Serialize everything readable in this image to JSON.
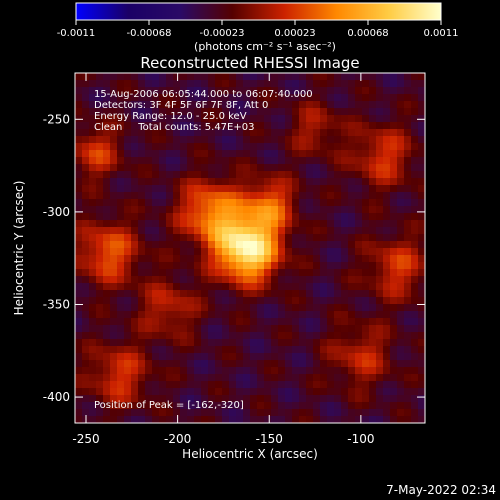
{
  "chart_data": {
    "type": "heatmap",
    "title": "Reconstructed RHESSI Image",
    "xlabel": "Heliocentric X (arcsec)",
    "ylabel": "Heliocentric Y (arcsec)",
    "xlim": [
      -256,
      -65
    ],
    "ylim": [
      -414,
      -225
    ],
    "x_ticks": [
      -250,
      -200,
      -150,
      -100
    ],
    "y_ticks": [
      -250,
      -300,
      -350,
      -400
    ],
    "colorbar": {
      "range": [
        -0.0011,
        0.0011
      ],
      "ticks": [
        "-0.0011",
        "-0.00068",
        "-0.00023",
        "0.00023",
        "0.00068",
        "0.0011"
      ],
      "unit_label": "(photons cm⁻² s⁻¹ asec⁻²)",
      "colormap": [
        "#0000ff",
        "#1a0066",
        "#2a0a66",
        "#550000",
        "#cc2200",
        "#ff8800",
        "#ffcc44",
        "#ffffcc"
      ]
    },
    "info_lines": [
      "15-Aug-2006 06:05:44.000 to 06:07:40.000",
      "Detectors: 3F 4F 5F 6F 7F 8F, Att 0",
      "Energy Range: 12.0 - 25.0 keV",
      "Clean     Total counts: 5.47E+03"
    ],
    "peak_label": "Position of Peak = [-162,-320]",
    "peak": {
      "x": -162,
      "y": -320
    },
    "sources": [
      {
        "x": -162,
        "y": -320,
        "amp": 1.0,
        "sigma": 12
      },
      {
        "x": -182,
        "y": -300,
        "amp": 0.55,
        "sigma": 12
      },
      {
        "x": -150,
        "y": -296,
        "amp": 0.45,
        "sigma": 10
      },
      {
        "x": -238,
        "y": -322,
        "amp": 0.45,
        "sigma": 12
      },
      {
        "x": -245,
        "y": -268,
        "amp": 0.35,
        "sigma": 10
      },
      {
        "x": -232,
        "y": -388,
        "amp": 0.35,
        "sigma": 12
      },
      {
        "x": -88,
        "y": -270,
        "amp": 0.35,
        "sigma": 12
      },
      {
        "x": -80,
        "y": -330,
        "amp": 0.35,
        "sigma": 12
      },
      {
        "x": -100,
        "y": -378,
        "amp": 0.3,
        "sigma": 12
      },
      {
        "x": -205,
        "y": -352,
        "amp": 0.3,
        "sigma": 11
      },
      {
        "x": -125,
        "y": -255,
        "amp": 0.25,
        "sigma": 10
      }
    ],
    "timestamp": "7-May-2022 02:34"
  }
}
